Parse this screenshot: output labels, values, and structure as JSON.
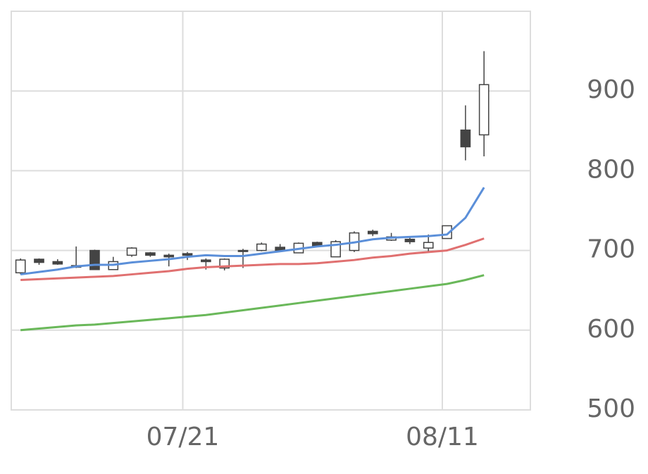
{
  "chart_data": {
    "type": "candlestick",
    "xlim": [
      -0.5,
      27.5
    ],
    "xticks": [
      {
        "value": 8.75,
        "label": "07/21"
      },
      {
        "value": 22.75,
        "label": "08/11"
      }
    ],
    "ylim": [
      500,
      1000
    ],
    "yticks": [
      500,
      600,
      700,
      800,
      900
    ],
    "grid": true,
    "up_color": "#ffffff",
    "down_color": "#444444",
    "edge_color": "#444444",
    "open": [
      672,
      689,
      686,
      681,
      700,
      676,
      694,
      697,
      694,
      696,
      688,
      678,
      700,
      700,
      704,
      697,
      710,
      692,
      700,
      724,
      713,
      714,
      703,
      715,
      851,
      845
    ],
    "high": [
      690,
      690,
      689,
      705,
      701,
      692,
      704,
      698,
      696,
      698,
      690,
      690,
      702,
      710,
      708,
      710,
      711,
      713,
      724,
      726,
      722,
      718,
      720,
      731,
      882,
      950
    ],
    "low": [
      670,
      682,
      682,
      678,
      676,
      676,
      692,
      692,
      680,
      688,
      676,
      675,
      678,
      699,
      698,
      697,
      705,
      692,
      698,
      718,
      712,
      708,
      697,
      715,
      813,
      818
    ],
    "close": [
      688,
      685,
      683,
      679,
      676,
      686,
      703,
      694,
      692,
      694,
      686,
      689,
      699,
      708,
      700,
      709,
      706,
      711,
      722,
      721,
      717,
      711,
      710,
      731,
      830,
      908
    ],
    "lines": [
      {
        "color": "#5b8fd9",
        "values": [
          670,
          673,
          676,
          680,
          682,
          682,
          685,
          687,
          689,
          692,
          694,
          693,
          693,
          696,
          699,
          702,
          705,
          707,
          710,
          714,
          716,
          717,
          718,
          720,
          741,
          779
        ]
      },
      {
        "color": "#e07070",
        "values": [
          663,
          664,
          665,
          666,
          667,
          668,
          670,
          672,
          674,
          677,
          679,
          680,
          681,
          682,
          683,
          683,
          684,
          686,
          688,
          691,
          693,
          696,
          698,
          700,
          707,
          715
        ]
      },
      {
        "color": "#6ab85a",
        "values": [
          600,
          602,
          604,
          606,
          607,
          609,
          611,
          613,
          615,
          617,
          619,
          622,
          625,
          628,
          631,
          634,
          637,
          640,
          643,
          646,
          649,
          652,
          655,
          658,
          663,
          669
        ]
      }
    ]
  }
}
